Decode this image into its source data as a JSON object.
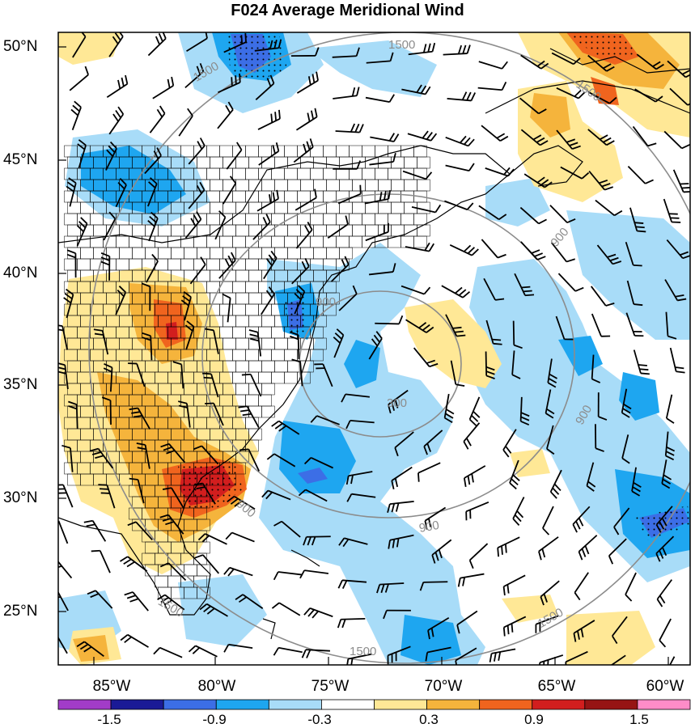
{
  "title": "F024 Average Meridional Wind",
  "latitude_labels": [
    "50°N",
    "45°N",
    "40°N",
    "35°N",
    "30°N",
    "25°N"
  ],
  "longitude_labels": [
    "85°W",
    "80°W",
    "75°W",
    "70°W",
    "65°W",
    "60°W"
  ],
  "colorbar": {
    "tick_labels": [
      "-1.5",
      "-0.9",
      "-0.3",
      "0.3",
      "0.9",
      "1.5"
    ],
    "colors": [
      "#a23cc8",
      "#1a1a96",
      "#3c6ee6",
      "#1ea6f0",
      "#a8dcf8",
      "#ffffff",
      "#ffe896",
      "#f5b43c",
      "#f0641e",
      "#d21e1e",
      "#961414",
      "#ff8cc8"
    ]
  },
  "contours": {
    "labels": [
      "300",
      "900",
      "900",
      "900",
      "900",
      "900",
      "1500",
      "1500",
      "1500",
      "1500",
      "1500"
    ],
    "color": "#8c8c8c"
  },
  "shading": {
    "negative_strong": "#1ea6f0",
    "negative_weak": "#a8dcf8",
    "negative_core": "#3c6ee6",
    "positive_weak": "#ffe896",
    "positive_mid": "#f5b43c",
    "positive_strong": "#f0641e",
    "positive_core": "#d21e1e"
  }
}
